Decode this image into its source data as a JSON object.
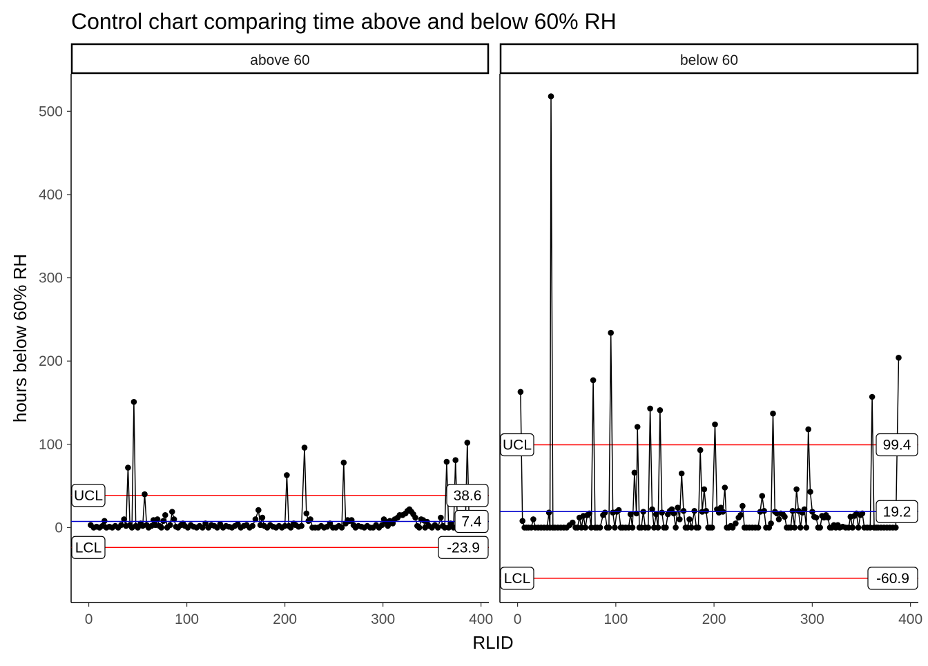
{
  "chart_data": {
    "type": "line",
    "title": "Control chart comparing time above and below 60% RH",
    "xlabel": "RLID",
    "ylabel": "hours below 60% RH",
    "y_ticks": [
      0,
      100,
      200,
      300,
      400,
      500
    ],
    "x_ticks": [
      0,
      100,
      200,
      300,
      400
    ],
    "ylim": [
      -90,
      545
    ],
    "xlim": [
      -18,
      408
    ],
    "colors": {
      "ucl": "#ff0000",
      "lcl": "#ff0000",
      "center": "#0000cc",
      "line": "#000000"
    },
    "panels": [
      {
        "label": "above 60",
        "ucl": 38.6,
        "ucl_label": "38.6",
        "ucl_tag": "UCL",
        "center": 7.4,
        "center_label": "7.4",
        "lcl": -23.9,
        "lcl_label": "-23.9",
        "lcl_tag": "LCL",
        "points": [
          [
            2,
            3
          ],
          [
            5,
            0
          ],
          [
            8,
            1
          ],
          [
            11,
            0
          ],
          [
            14,
            2
          ],
          [
            16,
            8
          ],
          [
            18,
            0
          ],
          [
            21,
            1
          ],
          [
            24,
            0
          ],
          [
            27,
            2
          ],
          [
            30,
            0
          ],
          [
            33,
            3
          ],
          [
            36,
            10
          ],
          [
            38,
            2
          ],
          [
            40,
            72
          ],
          [
            42,
            3
          ],
          [
            44,
            0
          ],
          [
            46,
            151
          ],
          [
            48,
            2
          ],
          [
            50,
            0
          ],
          [
            53,
            5
          ],
          [
            55,
            2
          ],
          [
            57,
            40
          ],
          [
            59,
            3
          ],
          [
            61,
            0
          ],
          [
            64,
            2
          ],
          [
            66,
            9
          ],
          [
            68,
            3
          ],
          [
            70,
            10
          ],
          [
            72,
            2
          ],
          [
            74,
            0
          ],
          [
            76,
            8
          ],
          [
            78,
            15
          ],
          [
            80,
            0
          ],
          [
            83,
            3
          ],
          [
            85,
            19
          ],
          [
            87,
            10
          ],
          [
            89,
            1
          ],
          [
            91,
            0
          ],
          [
            94,
            3
          ],
          [
            96,
            5
          ],
          [
            98,
            2
          ],
          [
            101,
            0
          ],
          [
            104,
            3
          ],
          [
            107,
            1
          ],
          [
            110,
            0
          ],
          [
            113,
            2
          ],
          [
            116,
            0
          ],
          [
            119,
            5
          ],
          [
            122,
            0
          ],
          [
            125,
            3
          ],
          [
            128,
            2
          ],
          [
            131,
            0
          ],
          [
            134,
            4
          ],
          [
            137,
            0
          ],
          [
            140,
            2
          ],
          [
            143,
            1
          ],
          [
            146,
            0
          ],
          [
            149,
            2
          ],
          [
            152,
            4
          ],
          [
            155,
            0
          ],
          [
            158,
            2
          ],
          [
            161,
            3
          ],
          [
            164,
            0
          ],
          [
            167,
            2
          ],
          [
            170,
            10
          ],
          [
            173,
            21
          ],
          [
            175,
            3
          ],
          [
            177,
            12
          ],
          [
            179,
            2
          ],
          [
            182,
            0
          ],
          [
            185,
            3
          ],
          [
            188,
            1
          ],
          [
            191,
            0
          ],
          [
            194,
            2
          ],
          [
            197,
            0
          ],
          [
            200,
            2
          ],
          [
            202,
            63
          ],
          [
            204,
            2
          ],
          [
            206,
            0
          ],
          [
            209,
            5
          ],
          [
            211,
            3
          ],
          [
            214,
            1
          ],
          [
            217,
            2
          ],
          [
            220,
            96
          ],
          [
            222,
            17
          ],
          [
            224,
            8
          ],
          [
            226,
            10
          ],
          [
            228,
            0
          ],
          [
            231,
            0
          ],
          [
            234,
            0
          ],
          [
            237,
            2
          ],
          [
            240,
            0
          ],
          [
            243,
            1
          ],
          [
            246,
            5
          ],
          [
            249,
            0
          ],
          [
            252,
            0
          ],
          [
            255,
            2
          ],
          [
            258,
            0
          ],
          [
            260,
            78
          ],
          [
            262,
            5
          ],
          [
            264,
            9
          ],
          [
            266,
            8
          ],
          [
            268,
            9
          ],
          [
            270,
            3
          ],
          [
            272,
            0
          ],
          [
            275,
            2
          ],
          [
            278,
            1
          ],
          [
            281,
            0
          ],
          [
            284,
            2
          ],
          [
            287,
            0
          ],
          [
            290,
            0
          ],
          [
            293,
            3
          ],
          [
            296,
            0
          ],
          [
            299,
            3
          ],
          [
            301,
            10
          ],
          [
            303,
            7
          ],
          [
            305,
            2
          ],
          [
            307,
            8
          ],
          [
            310,
            5
          ],
          [
            312,
            10
          ],
          [
            315,
            12
          ],
          [
            317,
            15
          ],
          [
            320,
            15
          ],
          [
            323,
            17
          ],
          [
            325,
            20
          ],
          [
            327,
            22
          ],
          [
            329,
            19
          ],
          [
            331,
            16
          ],
          [
            333,
            12
          ],
          [
            335,
            2
          ],
          [
            337,
            0
          ],
          [
            339,
            10
          ],
          [
            341,
            9
          ],
          [
            343,
            0
          ],
          [
            345,
            7
          ],
          [
            347,
            2
          ],
          [
            350,
            0
          ],
          [
            353,
            3
          ],
          [
            356,
            0
          ],
          [
            359,
            12
          ],
          [
            361,
            2
          ],
          [
            363,
            0
          ],
          [
            365,
            79
          ],
          [
            367,
            0
          ],
          [
            369,
            5
          ],
          [
            372,
            0
          ],
          [
            374,
            81
          ],
          [
            376,
            3
          ],
          [
            378,
            10
          ],
          [
            380,
            0
          ],
          [
            382,
            2
          ],
          [
            384,
            0
          ],
          [
            386,
            102
          ],
          [
            388,
            0
          ]
        ]
      },
      {
        "label": "below 60",
        "ucl": 99.4,
        "ucl_label": "99.4",
        "ucl_tag": "UCL",
        "center": 19.2,
        "center_label": "19.2",
        "lcl": -60.9,
        "lcl_label": "-60.9",
        "lcl_tag": "LCL",
        "points": [
          [
            3,
            163
          ],
          [
            5,
            8
          ],
          [
            7,
            0
          ],
          [
            9,
            0
          ],
          [
            11,
            0
          ],
          [
            14,
            0
          ],
          [
            16,
            10
          ],
          [
            18,
            0
          ],
          [
            21,
            0
          ],
          [
            24,
            0
          ],
          [
            27,
            0
          ],
          [
            30,
            0
          ],
          [
            32,
            18
          ],
          [
            33,
            0
          ],
          [
            34,
            518
          ],
          [
            36,
            0
          ],
          [
            38,
            0
          ],
          [
            41,
            0
          ],
          [
            44,
            0
          ],
          [
            47,
            0
          ],
          [
            50,
            0
          ],
          [
            53,
            3
          ],
          [
            56,
            6
          ],
          [
            59,
            0
          ],
          [
            61,
            0
          ],
          [
            63,
            12
          ],
          [
            65,
            0
          ],
          [
            67,
            14
          ],
          [
            69,
            0
          ],
          [
            71,
            15
          ],
          [
            73,
            17
          ],
          [
            75,
            0
          ],
          [
            77,
            177
          ],
          [
            79,
            0
          ],
          [
            81,
            0
          ],
          [
            84,
            0
          ],
          [
            87,
            15
          ],
          [
            89,
            18
          ],
          [
            91,
            0
          ],
          [
            93,
            0
          ],
          [
            95,
            234
          ],
          [
            97,
            18
          ],
          [
            99,
            0
          ],
          [
            101,
            19
          ],
          [
            103,
            21
          ],
          [
            105,
            0
          ],
          [
            107,
            0
          ],
          [
            110,
            0
          ],
          [
            113,
            0
          ],
          [
            115,
            16
          ],
          [
            117,
            0
          ],
          [
            119,
            66
          ],
          [
            121,
            17
          ],
          [
            122,
            121
          ],
          [
            124,
            0
          ],
          [
            126,
            0
          ],
          [
            128,
            19
          ],
          [
            130,
            0
          ],
          [
            133,
            0
          ],
          [
            135,
            143
          ],
          [
            137,
            22
          ],
          [
            139,
            0
          ],
          [
            141,
            16
          ],
          [
            143,
            0
          ],
          [
            145,
            141
          ],
          [
            147,
            18
          ],
          [
            149,
            0
          ],
          [
            151,
            0
          ],
          [
            153,
            16
          ],
          [
            155,
            20
          ],
          [
            157,
            22
          ],
          [
            159,
            17
          ],
          [
            161,
            0
          ],
          [
            163,
            24
          ],
          [
            165,
            10
          ],
          [
            167,
            65
          ],
          [
            169,
            20
          ],
          [
            171,
            0
          ],
          [
            173,
            0
          ],
          [
            175,
            10
          ],
          [
            177,
            0
          ],
          [
            180,
            20
          ],
          [
            182,
            0
          ],
          [
            184,
            0
          ],
          [
            186,
            93
          ],
          [
            188,
            19
          ],
          [
            190,
            46
          ],
          [
            192,
            20
          ],
          [
            194,
            0
          ],
          [
            196,
            0
          ],
          [
            198,
            0
          ],
          [
            201,
            124
          ],
          [
            203,
            22
          ],
          [
            205,
            18
          ],
          [
            207,
            24
          ],
          [
            209,
            19
          ],
          [
            211,
            48
          ],
          [
            213,
            0
          ],
          [
            215,
            0
          ],
          [
            217,
            2
          ],
          [
            219,
            0
          ],
          [
            222,
            5
          ],
          [
            225,
            12
          ],
          [
            227,
            15
          ],
          [
            229,
            26
          ],
          [
            231,
            0
          ],
          [
            233,
            0
          ],
          [
            236,
            0
          ],
          [
            239,
            0
          ],
          [
            242,
            0
          ],
          [
            245,
            0
          ],
          [
            247,
            19
          ],
          [
            249,
            38
          ],
          [
            251,
            20
          ],
          [
            253,
            0
          ],
          [
            256,
            0
          ],
          [
            258,
            5
          ],
          [
            260,
            137
          ],
          [
            262,
            19
          ],
          [
            264,
            17
          ],
          [
            266,
            10
          ],
          [
            268,
            17
          ],
          [
            270,
            16
          ],
          [
            272,
            13
          ],
          [
            274,
            0
          ],
          [
            276,
            0
          ],
          [
            278,
            0
          ],
          [
            280,
            20
          ],
          [
            282,
            0
          ],
          [
            284,
            46
          ],
          [
            286,
            20
          ],
          [
            288,
            0
          ],
          [
            290,
            18
          ],
          [
            292,
            22
          ],
          [
            294,
            0
          ],
          [
            296,
            118
          ],
          [
            298,
            43
          ],
          [
            300,
            19
          ],
          [
            302,
            13
          ],
          [
            304,
            12
          ],
          [
            306,
            0
          ],
          [
            308,
            0
          ],
          [
            310,
            14
          ],
          [
            312,
            12
          ],
          [
            314,
            15
          ],
          [
            316,
            12
          ],
          [
            318,
            0
          ],
          [
            320,
            0
          ],
          [
            322,
            3
          ],
          [
            324,
            0
          ],
          [
            326,
            3
          ],
          [
            328,
            0
          ],
          [
            331,
            1
          ],
          [
            334,
            0
          ],
          [
            337,
            0
          ],
          [
            339,
            13
          ],
          [
            341,
            0
          ],
          [
            343,
            14
          ],
          [
            345,
            17
          ],
          [
            347,
            0
          ],
          [
            349,
            15
          ],
          [
            351,
            17
          ],
          [
            353,
            0
          ],
          [
            356,
            0
          ],
          [
            359,
            0
          ],
          [
            361,
            157
          ],
          [
            363,
            0
          ],
          [
            365,
            0
          ],
          [
            367,
            0
          ],
          [
            370,
            0
          ],
          [
            373,
            0
          ],
          [
            376,
            0
          ],
          [
            379,
            0
          ],
          [
            382,
            0
          ],
          [
            385,
            0
          ],
          [
            388,
            204
          ]
        ]
      }
    ]
  }
}
